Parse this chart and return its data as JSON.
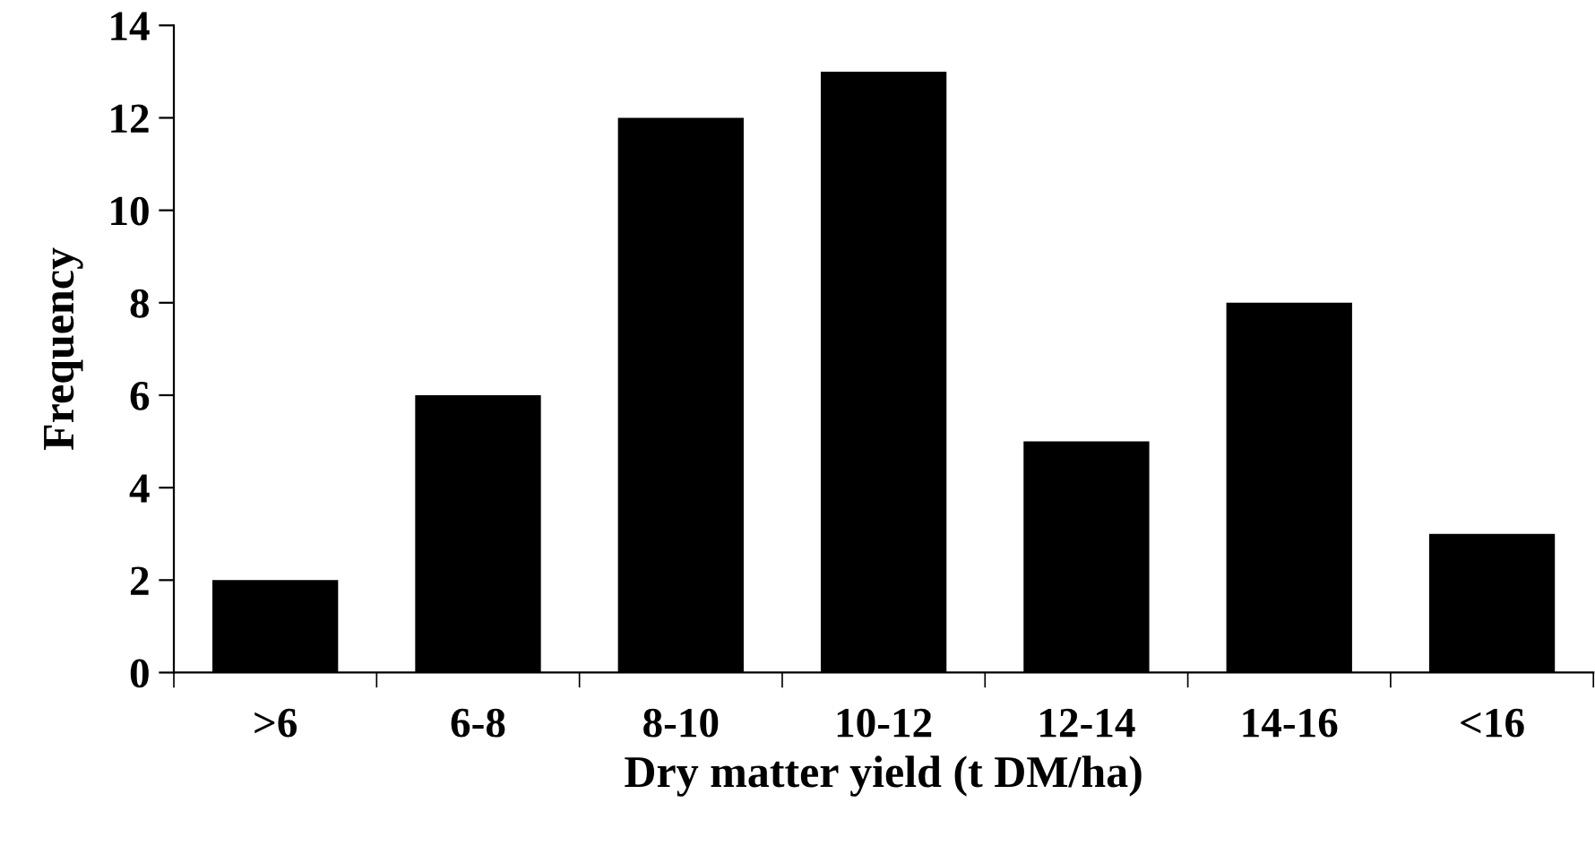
{
  "chart_data": {
    "type": "bar",
    "xlabel": "Dry matter yield (t DM/ha)",
    "ylabel": "Frequency",
    "categories": [
      ">6",
      "6-8",
      "8-10",
      "10-12",
      "12-14",
      "14-16",
      "<16"
    ],
    "values": [
      2,
      6,
      12,
      13,
      5,
      8,
      3
    ],
    "color": "#000000",
    "ylim": [
      0,
      14
    ],
    "yticks": [
      0,
      2,
      4,
      6,
      8,
      10,
      12,
      14
    ],
    "grid": false,
    "legend": false
  }
}
